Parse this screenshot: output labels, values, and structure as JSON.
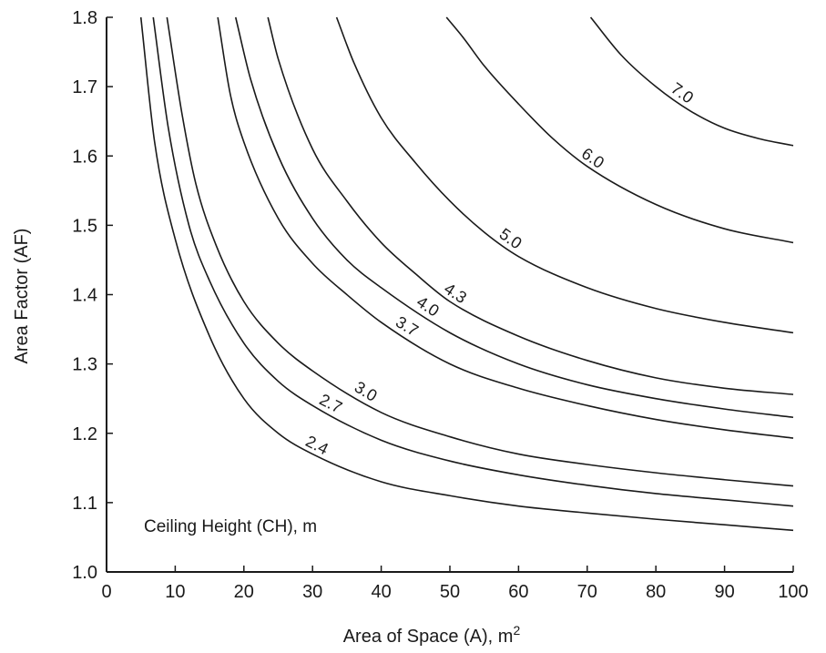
{
  "chart_data": {
    "type": "line",
    "title": "",
    "xlabel": "Area of Space (A), m",
    "xlabel_superscript": "2",
    "ylabel": "Area Factor (AF)",
    "annotation": "Ceiling Height (CH), m",
    "xlim": [
      0,
      100
    ],
    "ylim": [
      1.0,
      1.8
    ],
    "xticks": [
      "0",
      "10",
      "20",
      "30",
      "40",
      "50",
      "60",
      "70",
      "80",
      "90",
      "100"
    ],
    "yticks": [
      "1.0",
      "1.1",
      "1.2",
      "1.3",
      "1.4",
      "1.5",
      "1.6",
      "1.7",
      "1.8"
    ],
    "grid": false,
    "color": "#1a1a1a",
    "series": [
      {
        "name": "2.4",
        "x": [
          5,
          7,
          10,
          15,
          20,
          25,
          30,
          40,
          50,
          60,
          70,
          80,
          90,
          100
        ],
        "y": [
          1.8,
          1.62,
          1.48,
          1.34,
          1.25,
          1.2,
          1.17,
          1.13,
          1.11,
          1.095,
          1.085,
          1.076,
          1.068,
          1.06
        ]
      },
      {
        "name": "2.7",
        "x": [
          6.8,
          9,
          12,
          15,
          20,
          25,
          30,
          40,
          50,
          60,
          70,
          80,
          90,
          100
        ],
        "y": [
          1.8,
          1.64,
          1.5,
          1.42,
          1.33,
          1.275,
          1.24,
          1.19,
          1.16,
          1.14,
          1.125,
          1.113,
          1.104,
          1.095
        ]
      },
      {
        "name": "3.0",
        "x": [
          8.8,
          11,
          13,
          16,
          20,
          25,
          30,
          40,
          50,
          60,
          70,
          80,
          90,
          100
        ],
        "y": [
          1.8,
          1.66,
          1.56,
          1.47,
          1.39,
          1.33,
          1.29,
          1.23,
          1.195,
          1.17,
          1.155,
          1.143,
          1.133,
          1.124
        ]
      },
      {
        "name": "3.7",
        "x": [
          16.2,
          18,
          20,
          25,
          30,
          35,
          40,
          50,
          60,
          70,
          80,
          90,
          100
        ],
        "y": [
          1.8,
          1.69,
          1.62,
          1.51,
          1.445,
          1.4,
          1.36,
          1.3,
          1.265,
          1.24,
          1.22,
          1.205,
          1.193
        ]
      },
      {
        "name": "4.0",
        "x": [
          18.8,
          21,
          25,
          30,
          35,
          40,
          50,
          60,
          70,
          80,
          90,
          100
        ],
        "y": [
          1.8,
          1.71,
          1.6,
          1.51,
          1.45,
          1.41,
          1.345,
          1.3,
          1.27,
          1.25,
          1.235,
          1.223
        ]
      },
      {
        "name": "4.3",
        "x": [
          23.5,
          25,
          30,
          35,
          40,
          45,
          50,
          60,
          70,
          80,
          90,
          100
        ],
        "y": [
          1.8,
          1.74,
          1.61,
          1.535,
          1.475,
          1.43,
          1.39,
          1.34,
          1.305,
          1.28,
          1.265,
          1.256
        ]
      },
      {
        "name": "5.0",
        "x": [
          33.5,
          36,
          40,
          45,
          50,
          55,
          60,
          70,
          80,
          90,
          100
        ],
        "y": [
          1.8,
          1.735,
          1.655,
          1.59,
          1.535,
          1.49,
          1.455,
          1.41,
          1.38,
          1.36,
          1.345
        ]
      },
      {
        "name": "6.0",
        "x": [
          49.5,
          52,
          55,
          60,
          65,
          70,
          80,
          90,
          100
        ],
        "y": [
          1.8,
          1.77,
          1.73,
          1.675,
          1.625,
          1.585,
          1.53,
          1.495,
          1.475
        ]
      },
      {
        "name": "7.0",
        "x": [
          70.5,
          75,
          80,
          85,
          90,
          95,
          100
        ],
        "y": [
          1.8,
          1.745,
          1.7,
          1.665,
          1.64,
          1.625,
          1.615
        ]
      }
    ]
  }
}
